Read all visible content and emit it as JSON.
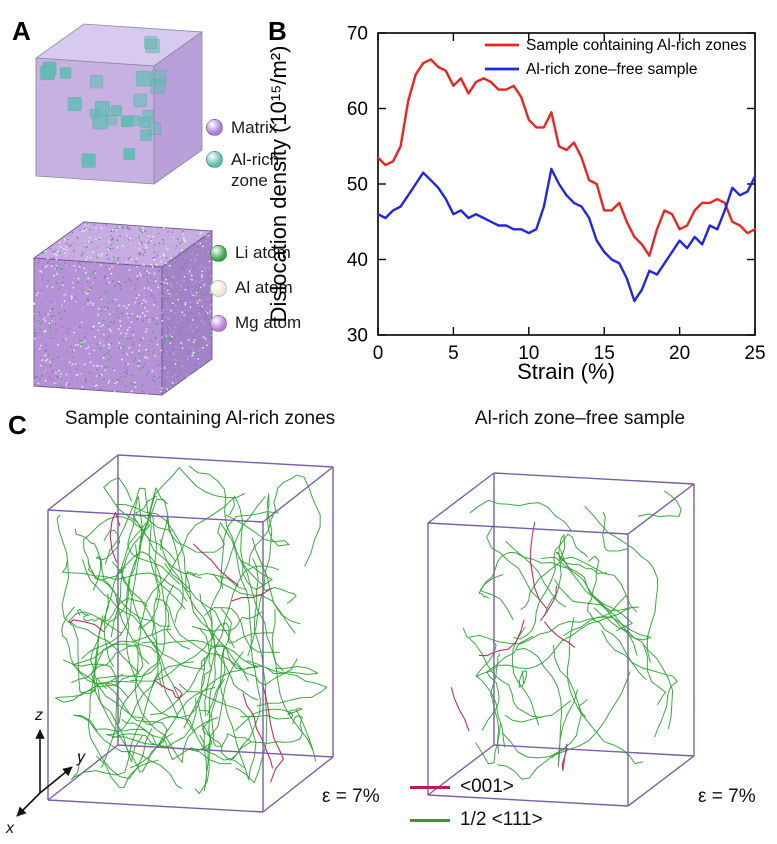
{
  "panelA": {
    "label": "A",
    "matrix_legend": [
      {
        "label": "Matrix",
        "color": "#a87fd2"
      },
      {
        "label": "Al-rich zone",
        "color": "#5fbdb2"
      }
    ],
    "atom_legend": [
      {
        "label": "Li atom",
        "color": "#3aa646"
      },
      {
        "label": "Al atom",
        "color": "#efe8da"
      },
      {
        "label": "Mg atom",
        "color": "#bb7fd8"
      }
    ]
  },
  "panelB": {
    "label": "B"
  },
  "chart_data": {
    "type": "line",
    "title": "",
    "xlabel": "Strain (%)",
    "ylabel": "Dislocation density (10¹⁵/m²)",
    "xlim": [
      0,
      25
    ],
    "ylim": [
      30,
      70
    ],
    "xticks": [
      0,
      5,
      10,
      15,
      20,
      25
    ],
    "yticks": [
      30,
      40,
      50,
      60,
      70
    ],
    "x_start": 0,
    "x_step": 0.5,
    "grid": false,
    "legend_position": "top-inside",
    "series": [
      {
        "name": "Sample containing Al-rich zones",
        "color": "#e8261f",
        "values": [
          53.5,
          52.5,
          53,
          55,
          61,
          64.5,
          66,
          66.5,
          65.5,
          65,
          63,
          64,
          62,
          63.5,
          64,
          63.5,
          62.5,
          62.5,
          63,
          61.5,
          58.5,
          57.5,
          57.5,
          59.5,
          55,
          54.5,
          55.5,
          53.5,
          50.5,
          50,
          46.5,
          46.5,
          47.5,
          45,
          43,
          42,
          40.5,
          44,
          46.5,
          46,
          44,
          44.5,
          46.5,
          47.5,
          47.5,
          48,
          47.5,
          45,
          44.5,
          43.5,
          44
        ]
      },
      {
        "name": "Al-rich zone–free sample",
        "color": "#2027e0",
        "values": [
          46,
          45.5,
          46.5,
          47,
          48.5,
          50,
          51.5,
          50.5,
          49.5,
          48,
          46,
          46.5,
          45.5,
          46,
          45.5,
          45,
          44.5,
          44.5,
          44,
          44,
          43.5,
          44,
          47,
          52,
          50,
          48.5,
          47.5,
          47,
          45.5,
          42.5,
          41,
          40,
          39.5,
          37.5,
          34.5,
          36,
          38.5,
          38,
          39.5,
          41,
          42.5,
          41.5,
          43,
          42,
          44.5,
          44,
          46.5,
          49.5,
          48.5,
          49,
          51
        ]
      }
    ]
  },
  "panelC": {
    "label": "C",
    "left_title": "Sample containing Al-rich zones",
    "right_title": "Al-rich zone–free sample",
    "left_strain": "ε = 7%",
    "right_strain": "ε = 7%",
    "box_edge_color": "#7b5ea7",
    "legend": [
      {
        "label": "<001>",
        "color": "#c2185b"
      },
      {
        "label": "1/2 <111>",
        "color": "#28a42c"
      }
    ],
    "axes": {
      "x": "x",
      "y": "y",
      "z": "z"
    }
  }
}
